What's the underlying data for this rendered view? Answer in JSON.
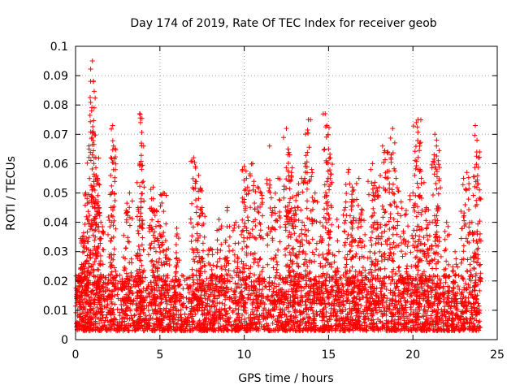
{
  "chart_data": {
    "type": "scatter",
    "title": "Day 174 of 2019, Rate Of TEC Index for receiver geob",
    "xlabel": "GPS time / hours",
    "ylabel": "ROTI / TECUs",
    "xlim": [
      0,
      24
    ],
    "ylim": [
      0,
      0.1
    ],
    "x_ticks": [
      0,
      5,
      10,
      15,
      20,
      25
    ],
    "x_tick_labels": [
      "0",
      "5",
      "10",
      "15",
      "20",
      "25"
    ],
    "y_ticks": [
      0,
      0.01,
      0.02,
      0.03,
      0.04,
      0.05,
      0.06,
      0.07,
      0.08,
      0.09,
      0.1
    ],
    "y_tick_labels": [
      "0",
      "0.01",
      "0.02",
      "0.03",
      "0.04",
      "0.05",
      "0.06",
      "0.07",
      "0.08",
      "0.09",
      "0.1"
    ],
    "grid": true,
    "marker": "+",
    "color": "#ff0000",
    "dense_band": {
      "x_range": [
        0,
        24
      ],
      "y_range": [
        0.003,
        0.022
      ],
      "note": "thousands of points densely filling low band"
    },
    "series": [
      {
        "name": "ROTI",
        "x": [
          0.2,
          0.4,
          0.6,
          0.8,
          0.95,
          1.0,
          1.05,
          1.1,
          1.2,
          1.3,
          1.4,
          0.7,
          0.5,
          1.5,
          2.2,
          2.25,
          2.1,
          3.0,
          3.2,
          3.8,
          3.85,
          3.9,
          3.7,
          4.5,
          4.6,
          4.8,
          5.0,
          5.2,
          5.5,
          6.0,
          7.0,
          7.1,
          7.3,
          7.4,
          7.5,
          8.0,
          8.5,
          9.0,
          9.5,
          9.9,
          10.0,
          10.2,
          10.5,
          10.8,
          11.0,
          11.5,
          11.8,
          12.0,
          12.5,
          12.6,
          12.7,
          12.8,
          13.0,
          13.2,
          13.4,
          13.6,
          13.8,
          14.0,
          14.2,
          14.5,
          14.8,
          14.9,
          15.0,
          15.1,
          15.5,
          16.0,
          16.2,
          16.4,
          16.5,
          16.8,
          17.0,
          17.5,
          17.6,
          17.8,
          18.0,
          18.2,
          18.5,
          18.7,
          18.8,
          19.0,
          19.3,
          19.6,
          20.0,
          20.2,
          20.3,
          20.4,
          20.5,
          20.8,
          21.0,
          21.3,
          21.4,
          21.5,
          22.0,
          22.5,
          23.0,
          23.2,
          23.5,
          23.7,
          23.8,
          23.9
        ],
        "y": [
          0.022,
          0.035,
          0.05,
          0.065,
          0.078,
          0.095,
          0.088,
          0.079,
          0.062,
          0.055,
          0.045,
          0.041,
          0.03,
          0.04,
          0.073,
          0.066,
          0.045,
          0.044,
          0.05,
          0.077,
          0.074,
          0.067,
          0.045,
          0.048,
          0.052,
          0.044,
          0.036,
          0.05,
          0.031,
          0.038,
          0.062,
          0.054,
          0.056,
          0.051,
          0.045,
          0.031,
          0.041,
          0.045,
          0.04,
          0.058,
          0.059,
          0.052,
          0.06,
          0.052,
          0.05,
          0.066,
          0.045,
          0.055,
          0.072,
          0.065,
          0.063,
          0.057,
          0.045,
          0.05,
          0.055,
          0.06,
          0.075,
          0.058,
          0.05,
          0.04,
          0.077,
          0.073,
          0.065,
          0.062,
          0.041,
          0.045,
          0.058,
          0.052,
          0.051,
          0.055,
          0.044,
          0.058,
          0.06,
          0.05,
          0.052,
          0.066,
          0.064,
          0.062,
          0.072,
          0.055,
          0.047,
          0.044,
          0.05,
          0.074,
          0.075,
          0.066,
          0.055,
          0.045,
          0.04,
          0.07,
          0.066,
          0.061,
          0.04,
          0.03,
          0.055,
          0.057,
          0.04,
          0.073,
          0.068,
          0.062
        ]
      }
    ]
  }
}
